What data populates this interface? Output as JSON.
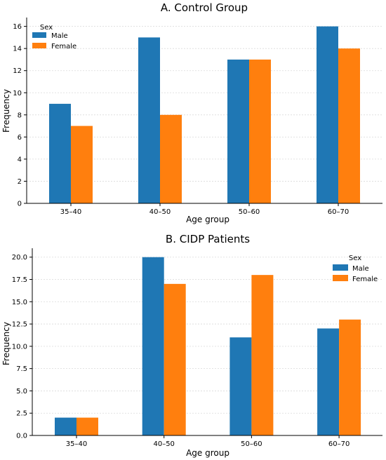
{
  "colors": {
    "male": "#1f77b4",
    "female": "#ff7f0e",
    "grid": "#d9d9d9"
  },
  "chart_data": [
    {
      "type": "bar",
      "title": "A. Control Group",
      "xlabel": "Age group",
      "ylabel": "Frequency",
      "categories": [
        "35–40",
        "40–50",
        "50–60",
        "60–70"
      ],
      "series": [
        {
          "name": "Male",
          "values": [
            9,
            15,
            13,
            16
          ]
        },
        {
          "name": "Female",
          "values": [
            7,
            8,
            13,
            14
          ]
        }
      ],
      "ylim": [
        0,
        16.8
      ],
      "yticks": [
        0,
        2,
        4,
        6,
        8,
        10,
        12,
        14,
        16
      ],
      "ytick_labels": [
        "0",
        "2",
        "4",
        "6",
        "8",
        "10",
        "12",
        "14",
        "16"
      ],
      "grid": "horizontal dotted",
      "legend": {
        "title": "Sex",
        "placement": "top-left"
      }
    },
    {
      "type": "bar",
      "title": "B. CIDP Patients",
      "xlabel": "Age group",
      "ylabel": "Frequency",
      "categories": [
        "35–40",
        "40–50",
        "50–60",
        "60–70"
      ],
      "series": [
        {
          "name": "Male",
          "values": [
            2,
            20,
            11,
            12
          ]
        },
        {
          "name": "Female",
          "values": [
            2,
            17,
            18,
            13
          ]
        }
      ],
      "ylim": [
        0,
        21
      ],
      "yticks": [
        0,
        2.5,
        5,
        7.5,
        10,
        12.5,
        15,
        17.5,
        20
      ],
      "ytick_labels": [
        "0.0",
        "2.5",
        "5.0",
        "7.5",
        "10.0",
        "12.5",
        "15.0",
        "17.5",
        "20.0"
      ],
      "grid": "horizontal dotted",
      "legend": {
        "title": "Sex",
        "placement": "top-right"
      }
    }
  ]
}
